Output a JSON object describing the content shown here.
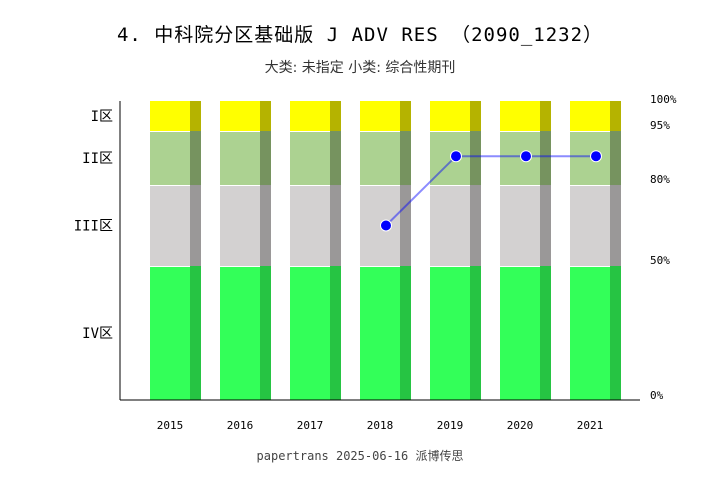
{
  "title": "4. 中科院分区基础版 J ADV RES （2090_1232）",
  "subtitle": "大类: 未指定 小类: 综合性期刊",
  "footer": "papertrans 2025-06-16 派博传思",
  "chart_data": {
    "type": "bar",
    "stacked": true,
    "categories": [
      "2015",
      "2016",
      "2017",
      "2018",
      "2019",
      "2020",
      "2021"
    ],
    "zones": [
      {
        "name": "IV区",
        "from": 0,
        "to": 50,
        "color": "#33ff59",
        "shade": "#26c443"
      },
      {
        "name": "III区",
        "from": 50,
        "to": 80,
        "color": "#d3d1d1",
        "shade": "#9a9898"
      },
      {
        "name": "II区",
        "from": 80,
        "to": 95,
        "color": "#acd291",
        "shade": "#76935f"
      },
      {
        "name": "I区",
        "from": 95,
        "to": 100,
        "color": "#ffff00",
        "shade": "#b5b300"
      }
    ],
    "right_ticks": [
      "0%",
      "50%",
      "80%",
      "95%",
      "100%"
    ],
    "line": {
      "color": "#0000ff",
      "points": [
        {
          "x": "2018",
          "y": 65
        },
        {
          "x": "2019",
          "y": 88
        },
        {
          "x": "2020",
          "y": 88
        },
        {
          "x": "2021",
          "y": 88
        }
      ]
    }
  }
}
